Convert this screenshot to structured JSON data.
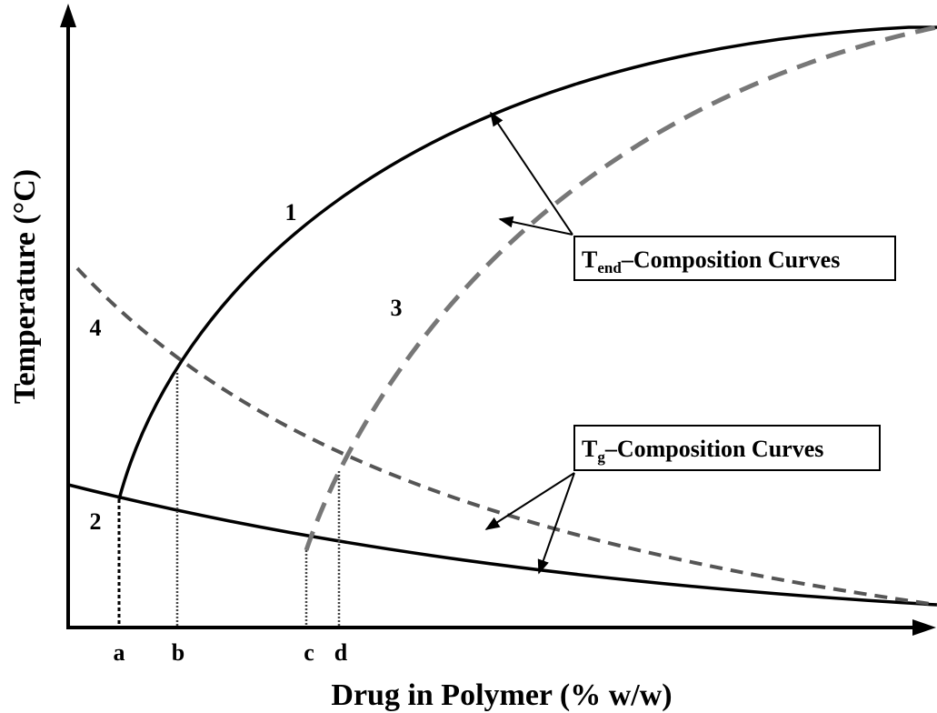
{
  "axes": {
    "y_label": "Temperature (°C)",
    "x_label": "Drug in Polymer (% w/w)"
  },
  "curve_labels": [
    "1",
    "2",
    "3",
    "4"
  ],
  "x_marks": [
    "a",
    "b",
    "c",
    "d"
  ],
  "callouts": [
    {
      "main": "T",
      "sub": "end",
      "rest": "–Composition Curves"
    },
    {
      "main": "T",
      "sub": "g",
      "rest": "–Composition Curves"
    }
  ]
}
